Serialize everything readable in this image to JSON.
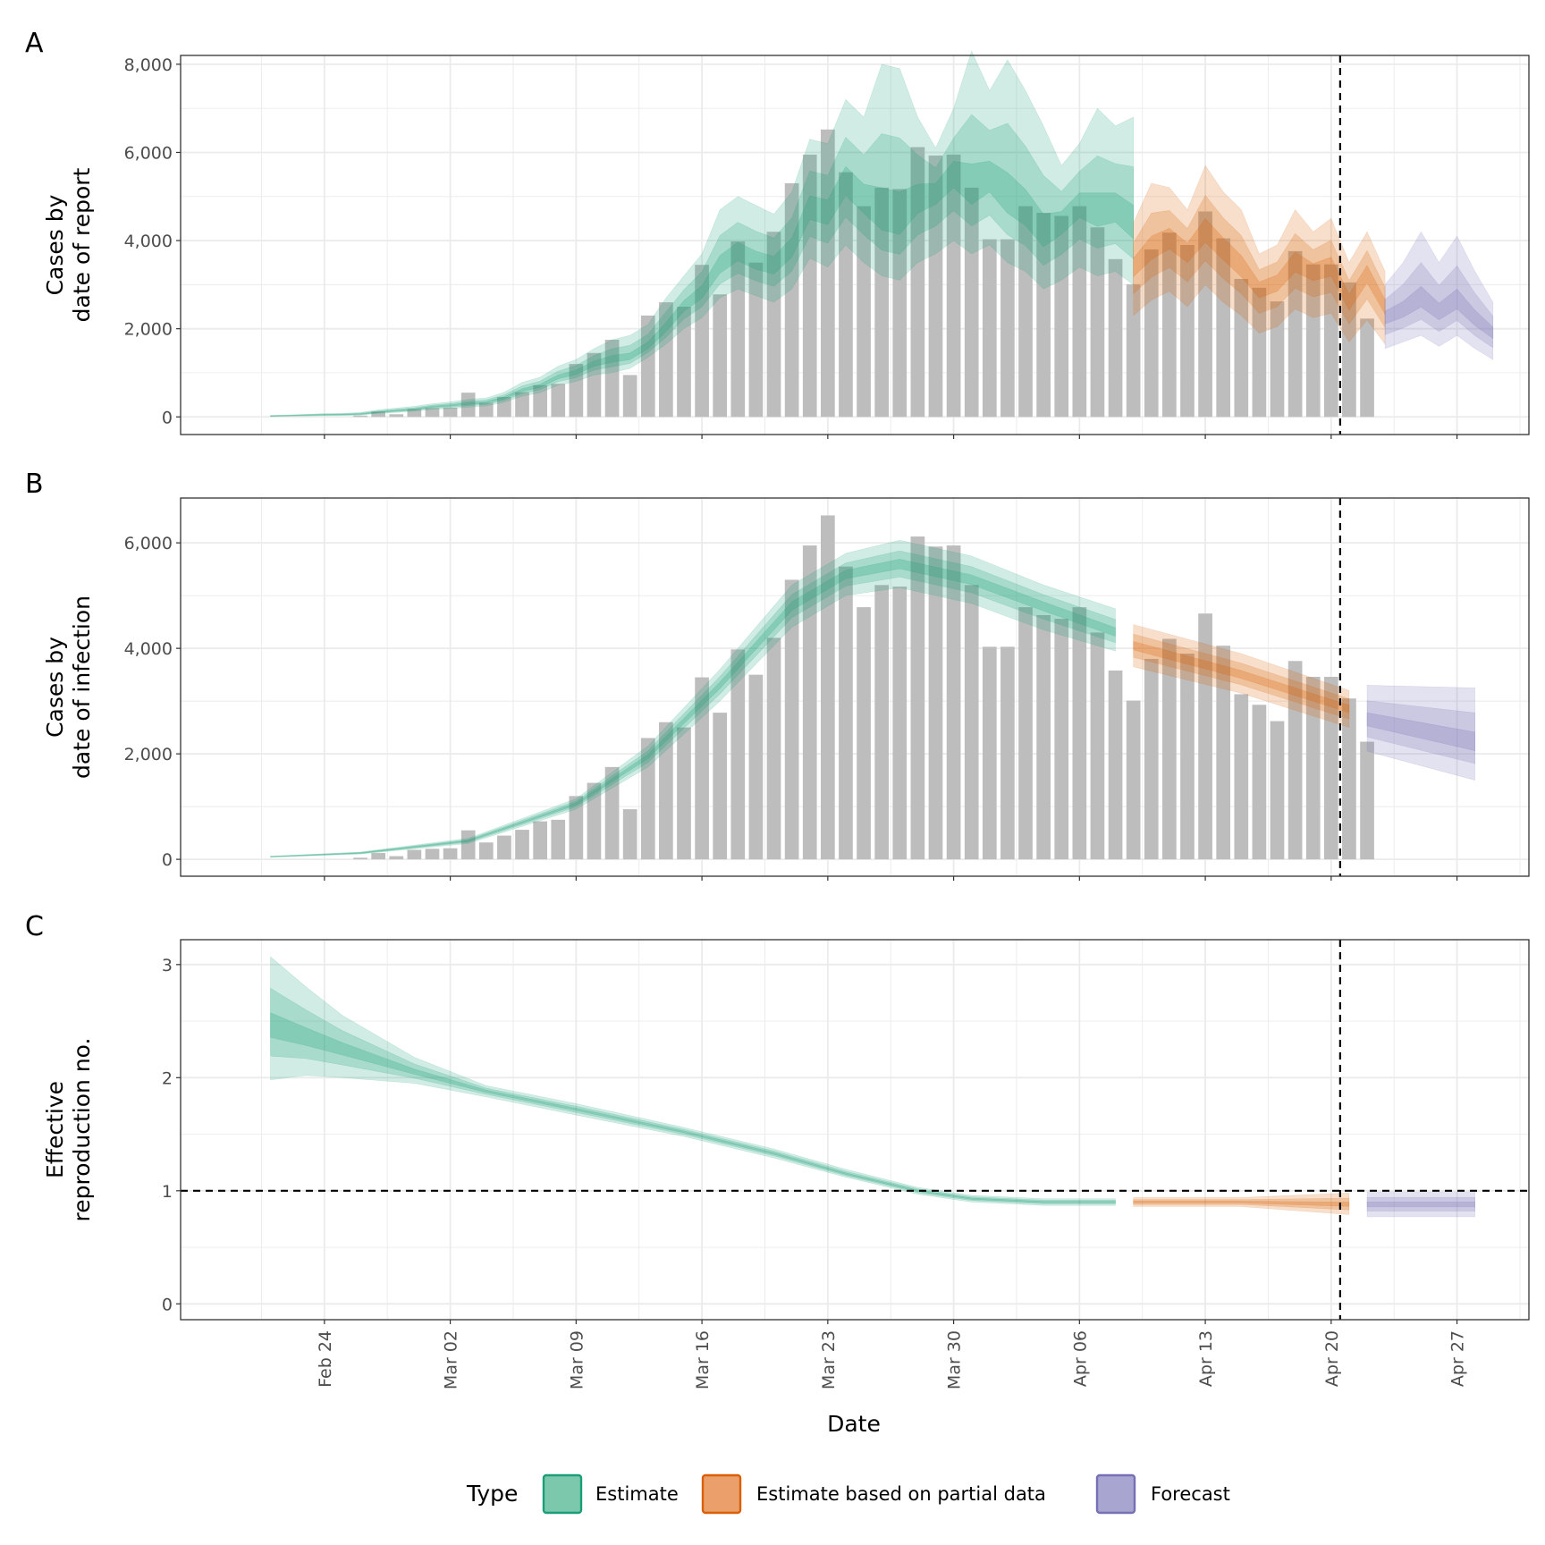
{
  "chart_data": [
    {
      "panel": "A",
      "type": "bar",
      "ylabel": [
        "Cases by",
        "date of report"
      ],
      "ylim": [
        -400,
        8200
      ],
      "yticks": [
        0,
        2000,
        4000,
        6000,
        8000
      ],
      "ytick_labels": [
        "0",
        "2,000",
        "4,000",
        "6,000",
        "8,000"
      ],
      "bars_start_date": "2020-02-26",
      "bars": [
        30,
        120,
        60,
        180,
        200,
        210,
        550,
        320,
        450,
        560,
        720,
        750,
        1200,
        1450,
        1750,
        950,
        2300,
        2600,
        2500,
        3450,
        2780,
        3980,
        3500,
        4200,
        5300,
        5950,
        6520,
        5550,
        4780,
        5200,
        5170,
        6120,
        5930,
        5950,
        5200,
        4030,
        4030,
        4780,
        4630,
        4560,
        4780,
        4300,
        3580,
        3010,
        3800,
        4180,
        3900,
        4660,
        4050,
        3130,
        2930,
        2620,
        3760,
        3460,
        3460,
        3050,
        2230
      ],
      "series": [
        {
          "type": "Estimate",
          "start_date": "2020-02-21",
          "median": [
            20,
            30,
            40,
            50,
            55,
            65,
            110,
            140,
            170,
            230,
            260,
            300,
            330,
            430,
            600,
            700,
            900,
            1000,
            1200,
            1300,
            1350,
            1600,
            2000,
            2500,
            2800,
            3400,
            3700,
            3500,
            3400,
            3800,
            4700,
            4600,
            5300,
            4900,
            4500,
            4400,
            4900,
            5100,
            5500,
            5100,
            5400,
            4900,
            4600,
            4100,
            4400,
            4800,
            4600,
            4700,
            4300
          ],
          "lower90": [
            10,
            15,
            20,
            25,
            30,
            40,
            80,
            100,
            130,
            170,
            190,
            220,
            250,
            330,
            470,
            550,
            720,
            800,
            950,
            1000,
            1100,
            1350,
            1650,
            2000,
            2250,
            2700,
            2900,
            2750,
            2600,
            2900,
            3600,
            3400,
            3900,
            3500,
            3200,
            3100,
            3500,
            3700,
            4000,
            3700,
            3900,
            3500,
            3300,
            2900,
            3100,
            3400,
            3200,
            3300,
            3000
          ],
          "upper90": [
            35,
            45,
            60,
            75,
            80,
            100,
            160,
            200,
            240,
            300,
            340,
            400,
            430,
            560,
            780,
            900,
            1150,
            1300,
            1550,
            1750,
            1850,
            2100,
            2700,
            3200,
            3700,
            4700,
            5000,
            4800,
            4600,
            5100,
            6300,
            6200,
            7200,
            6800,
            8000,
            7900,
            6800,
            6100,
            7000,
            8300,
            7400,
            8100,
            7400,
            6600,
            5700,
            6200,
            7000,
            6600,
            6800,
            6500
          ]
        },
        {
          "type": "Estimate based on partial data",
          "start_date": "2020-04-09",
          "median": [
            3400,
            3800,
            4050,
            3750,
            4200,
            3800,
            3400,
            2900,
            3050,
            3500,
            3300,
            3400,
            2600,
            3250,
            2500
          ],
          "lower90": [
            2300,
            2650,
            2850,
            2500,
            3000,
            2600,
            2300,
            1900,
            2050,
            2450,
            2250,
            2350,
            1700,
            2200,
            1650
          ],
          "upper90": [
            4400,
            5300,
            5200,
            4700,
            5700,
            5100,
            4700,
            3700,
            3900,
            4700,
            4200,
            4500,
            3500,
            4200,
            3300
          ]
        },
        {
          "type": "Forecast",
          "start_date": "2020-04-23",
          "median": [
            2250,
            2400,
            2650,
            2350,
            2600,
            2200,
            1900
          ],
          "lower90": [
            1550,
            1700,
            1850,
            1600,
            1850,
            1550,
            1300
          ],
          "upper90": [
            3000,
            3500,
            4200,
            3500,
            4100,
            3300,
            2600
          ]
        }
      ]
    },
    {
      "panel": "B",
      "type": "bar",
      "ylabel": [
        "Cases by",
        "date of infection"
      ],
      "ylim": [
        -320,
        6850
      ],
      "yticks": [
        0,
        2000,
        4000,
        6000
      ],
      "ytick_labels": [
        "0",
        "2,000",
        "4,000",
        "6,000"
      ],
      "bars_start_date": "2020-02-26",
      "bars": [
        30,
        120,
        60,
        180,
        200,
        210,
        550,
        320,
        450,
        560,
        720,
        750,
        1200,
        1450,
        1750,
        950,
        2300,
        2600,
        2500,
        3450,
        2780,
        3980,
        3500,
        4200,
        5300,
        5950,
        6520,
        5550,
        4780,
        5200,
        5170,
        6120,
        5930,
        5950,
        5200,
        4030,
        4030,
        4780,
        4630,
        4560,
        4780,
        4300,
        3580,
        3010,
        3800,
        4180,
        3900,
        4660,
        4050,
        3130,
        2930,
        2620,
        3760,
        3460,
        3460,
        3050,
        2230
      ],
      "series": [
        {
          "type": "Estimate",
          "date_knots": [
            "2020-02-21",
            "2020-02-26",
            "2020-03-03",
            "2020-03-09",
            "2020-03-13",
            "2020-03-17",
            "2020-03-21",
            "2020-03-24",
            "2020-03-27",
            "2020-03-31",
            "2020-04-04",
            "2020-04-08"
          ],
          "median": [
            50,
            120,
            350,
            1050,
            1950,
            3300,
            4800,
            5400,
            5600,
            5300,
            4800,
            4300
          ],
          "lower90": [
            40,
            100,
            300,
            950,
            1750,
            3000,
            4400,
            5000,
            5150,
            4850,
            4350,
            3950
          ],
          "upper90": [
            60,
            140,
            400,
            1150,
            2150,
            3600,
            5200,
            5800,
            6050,
            5750,
            5200,
            4750
          ]
        },
        {
          "type": "Estimate based on partial data",
          "date_knots": [
            "2020-04-09",
            "2020-04-15",
            "2020-04-21"
          ],
          "median": [
            4050,
            3500,
            2850
          ],
          "lower90": [
            3650,
            3150,
            2500
          ],
          "upper90": [
            4450,
            3900,
            3200
          ]
        },
        {
          "type": "Forecast",
          "date_knots": [
            "2020-04-22",
            "2020-04-28"
          ],
          "median": [
            2650,
            2200
          ],
          "lower90": [
            2050,
            1500
          ],
          "upper90": [
            3300,
            3250
          ]
        }
      ]
    },
    {
      "panel": "C",
      "type": "line",
      "ylabel": [
        "Effective",
        "reproduction no."
      ],
      "xlabel": "Date",
      "ylim": [
        -0.14,
        3.22
      ],
      "yticks": [
        0,
        1,
        2,
        3
      ],
      "ytick_labels": [
        "0",
        "1",
        "2",
        "3"
      ],
      "reference_line": 1,
      "series": [
        {
          "type": "Estimate",
          "date_knots": [
            "2020-02-21",
            "2020-02-23",
            "2020-02-25",
            "2020-02-29",
            "2020-03-04",
            "2020-03-09",
            "2020-03-15",
            "2020-03-20",
            "2020-03-24",
            "2020-03-28",
            "2020-03-31",
            "2020-04-04",
            "2020-04-08"
          ],
          "median": [
            2.45,
            2.35,
            2.25,
            2.05,
            1.88,
            1.72,
            1.52,
            1.33,
            1.15,
            1.0,
            0.93,
            0.9,
            0.9
          ],
          "lower90": [
            1.98,
            2.02,
            2.0,
            1.95,
            1.83,
            1.67,
            1.48,
            1.29,
            1.12,
            0.97,
            0.9,
            0.87,
            0.87
          ],
          "upper90": [
            3.07,
            2.8,
            2.55,
            2.18,
            1.93,
            1.77,
            1.56,
            1.37,
            1.19,
            1.03,
            0.96,
            0.93,
            0.93
          ]
        },
        {
          "type": "Estimate based on partial data",
          "date_knots": [
            "2020-04-09",
            "2020-04-15",
            "2020-04-21"
          ],
          "median": [
            0.9,
            0.9,
            0.88
          ],
          "lower90": [
            0.86,
            0.86,
            0.79
          ],
          "upper90": [
            0.94,
            0.94,
            0.98
          ]
        },
        {
          "type": "Forecast",
          "date_knots": [
            "2020-04-22",
            "2020-04-28"
          ],
          "median": [
            0.88,
            0.88
          ],
          "lower90": [
            0.77,
            0.77
          ],
          "upper90": [
            0.99,
            0.99
          ]
        }
      ]
    }
  ],
  "x_axis": {
    "title": "Date",
    "ticks": [
      {
        "date": "2020-02-24",
        "label": "Feb 24"
      },
      {
        "date": "2020-03-02",
        "label": "Mar 02"
      },
      {
        "date": "2020-03-09",
        "label": "Mar 09"
      },
      {
        "date": "2020-03-16",
        "label": "Mar 16"
      },
      {
        "date": "2020-03-23",
        "label": "Mar 23"
      },
      {
        "date": "2020-03-30",
        "label": "Mar 30"
      },
      {
        "date": "2020-04-06",
        "label": "Apr 06"
      },
      {
        "date": "2020-04-13",
        "label": "Apr 13"
      },
      {
        "date": "2020-04-20",
        "label": "Apr 20"
      },
      {
        "date": "2020-04-27",
        "label": "Apr 27"
      }
    ],
    "range": [
      "2020-02-16",
      "2020-05-01"
    ],
    "date_of_estimate": "2020-04-21"
  },
  "panel_tags": [
    "A",
    "B",
    "C"
  ],
  "legend": {
    "title": "Type",
    "placement": "bottom",
    "items": [
      {
        "label": "Estimate",
        "fill": "#7bc8ad",
        "border": "#1b9e77"
      },
      {
        "label": "Estimate based on partial data",
        "fill": "#eb9f6b",
        "border": "#d95f02"
      },
      {
        "label": "Forecast",
        "fill": "#a8a5d1",
        "border": "#7570b3"
      }
    ]
  },
  "colors": {
    "Estimate": "#1b9e77",
    "Estimate based on partial data": "#d95f02",
    "Forecast": "#7570b3",
    "bars": "#bdbdbd",
    "grid": "#ebebeb"
  }
}
